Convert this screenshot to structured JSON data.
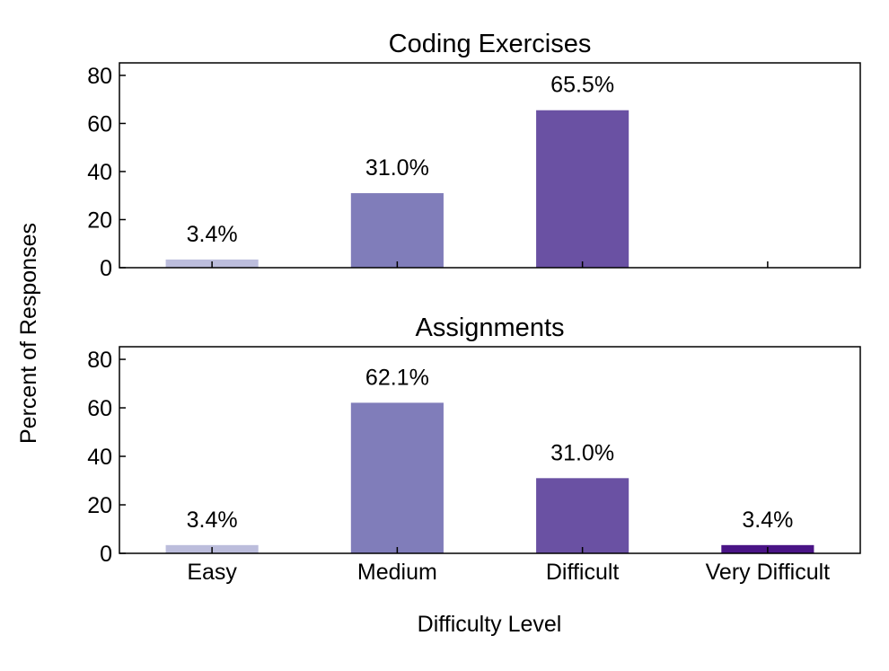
{
  "chart_data": [
    {
      "type": "bar",
      "title": "Coding Exercises",
      "categories": [
        "Easy",
        "Medium",
        "Difficult",
        "Very Difficult"
      ],
      "values": [
        3.4,
        31.0,
        65.5,
        0
      ],
      "labels": [
        "3.4%",
        "31.0%",
        "65.5%",
        ""
      ],
      "ylim": [
        0,
        85.2
      ],
      "yticks": [
        0,
        20,
        40,
        60,
        80
      ],
      "show_xticklabels": false
    },
    {
      "type": "bar",
      "title": "Assignments",
      "categories": [
        "Easy",
        "Medium",
        "Difficult",
        "Very Difficult"
      ],
      "values": [
        3.4,
        62.1,
        31.0,
        3.4
      ],
      "labels": [
        "3.4%",
        "62.1%",
        "31.0%",
        "3.4%"
      ],
      "ylim": [
        0,
        85.2
      ],
      "yticks": [
        0,
        20,
        40,
        60,
        80
      ],
      "show_xticklabels": true
    }
  ],
  "ylabel": "Percent of Responses",
  "xlabel": "Difficulty Level",
  "colors": [
    "#bcbddc",
    "#807dba",
    "#6a51a3",
    "#4a1486"
  ]
}
